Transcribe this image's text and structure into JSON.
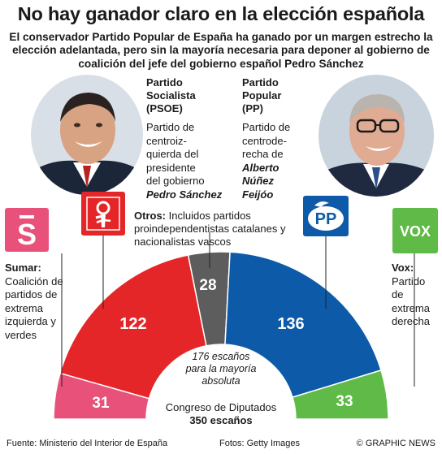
{
  "title": "No hay ganador claro en la elección española",
  "subtitle": "El conservador Partido Popular de España ha ganado por un margen estrecho la elección adelantada, pero sin la mayoría necesaria para deponer al gobierno de coalición del jefe del gobierno español Pedro Sánchez",
  "psoe": {
    "heading_lines": [
      "Partido",
      "Socialista",
      "(PSOE)"
    ],
    "desc_lines": [
      "Partido de",
      "centroiz-",
      "quierda del",
      "presidente",
      "del gobierno"
    ],
    "leader": "Pedro Sánchez",
    "seats": 122,
    "color": "#e52628"
  },
  "pp": {
    "heading_lines": [
      "Partido",
      "Popular",
      "(PP)"
    ],
    "desc_lines": [
      "Partido de",
      "centrode-",
      "recha de"
    ],
    "leader_lines": [
      "Alberto",
      "Núñez",
      "Feijóo"
    ],
    "seats": 136,
    "logo_text": "PP",
    "color": "#0d5aa8"
  },
  "others": {
    "label": "Otros:",
    "desc": "Incluidos partidos proindependentistas catalanes y nacionalistas vascos",
    "seats": 28,
    "color": "#5d5d5d"
  },
  "sumar": {
    "label": "Sumar:",
    "desc_lines": [
      "Coalición de",
      "partidos de",
      "extrema",
      "izquierda y",
      "verdes"
    ],
    "seats": 31,
    "logo_text": "S",
    "color": "#e8517a"
  },
  "vox": {
    "label": "Vox:",
    "desc_lines": [
      "Partido",
      "de",
      "extrema",
      "derecha"
    ],
    "seats": 33,
    "logo_text": "VOX",
    "color": "#5fba47"
  },
  "majority_lines": [
    "176 escaños",
    "para la mayoría",
    "absoluta"
  ],
  "congress_label": "Congreso de Diputados",
  "total_label": "350 escaños",
  "footer": {
    "source": "Fuente: Ministerio del Interior de España",
    "photos": "Fotos: Getty Images",
    "credit": "© GRAPHIC NEWS"
  }
}
